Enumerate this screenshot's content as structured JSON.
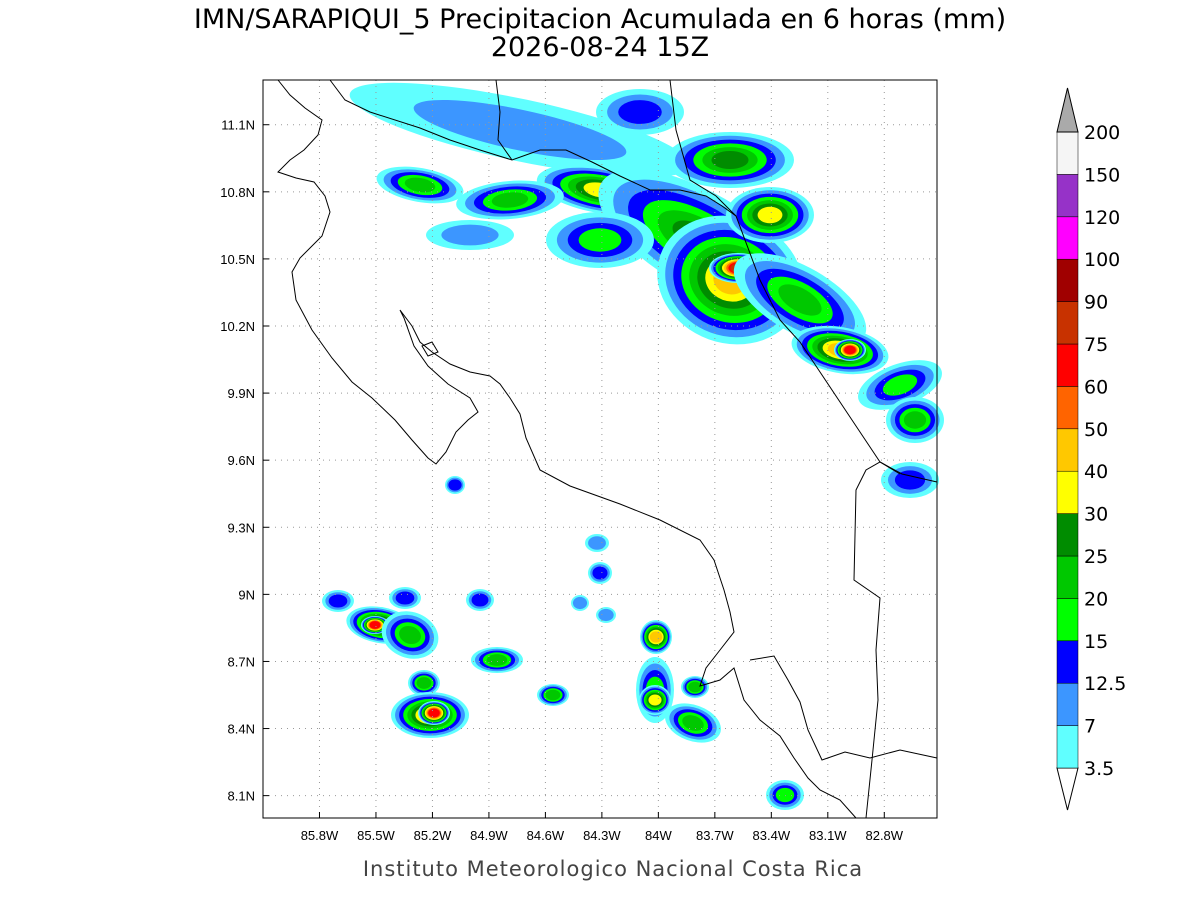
{
  "map": {
    "title": "IMN/SARAPIQUI_5 Precipitacion Acumulada en 6 horas (mm)",
    "subtitle": "2026-08-24 15Z",
    "footer": "Instituto Meteorologico Nacional Costa Rica",
    "lon_range": [
      -86.1,
      -82.52
    ],
    "lat_range": [
      8.0,
      11.3
    ],
    "lon_ticks": [
      {
        "value": -85.8,
        "label": "85.8W"
      },
      {
        "value": -85.5,
        "label": "85.5W"
      },
      {
        "value": -85.2,
        "label": "85.2W"
      },
      {
        "value": -84.9,
        "label": "84.9W"
      },
      {
        "value": -84.6,
        "label": "84.6W"
      },
      {
        "value": -84.3,
        "label": "84.3W"
      },
      {
        "value": -84,
        "label": "84W"
      },
      {
        "value": -83.7,
        "label": "83.7W"
      },
      {
        "value": -83.4,
        "label": "83.4W"
      },
      {
        "value": -83.1,
        "label": "83.1W"
      },
      {
        "value": -82.8,
        "label": "82.8W"
      }
    ],
    "lat_ticks": [
      {
        "value": 8.1,
        "label": "8.1N"
      },
      {
        "value": 8.4,
        "label": "8.4N"
      },
      {
        "value": 8.7,
        "label": "8.7N"
      },
      {
        "value": 9,
        "label": "9N"
      },
      {
        "value": 9.3,
        "label": "9.3N"
      },
      {
        "value": 9.6,
        "label": "9.6N"
      },
      {
        "value": 9.9,
        "label": "9.9N"
      },
      {
        "value": 10.2,
        "label": "10.2N"
      },
      {
        "value": 10.5,
        "label": "10.5N"
      },
      {
        "value": 10.8,
        "label": "10.8N"
      },
      {
        "value": 11.1,
        "label": "11.1N"
      }
    ],
    "colorbar": {
      "levels": [
        3.5,
        7,
        12.5,
        15,
        20,
        25,
        30,
        40,
        50,
        60,
        75,
        90,
        100,
        120,
        150,
        200
      ],
      "colors": [
        "#ffffff",
        "#60ffff",
        "#3c96ff",
        "#0000ff",
        "#00ff00",
        "#00c800",
        "#008c00",
        "#ffff00",
        "#ffc800",
        "#ff6400",
        "#ff0000",
        "#c83200",
        "#a00000",
        "#ff00ff",
        "#9632c8",
        "#f5f5f5",
        "#aaaaaa"
      ]
    }
  }
}
